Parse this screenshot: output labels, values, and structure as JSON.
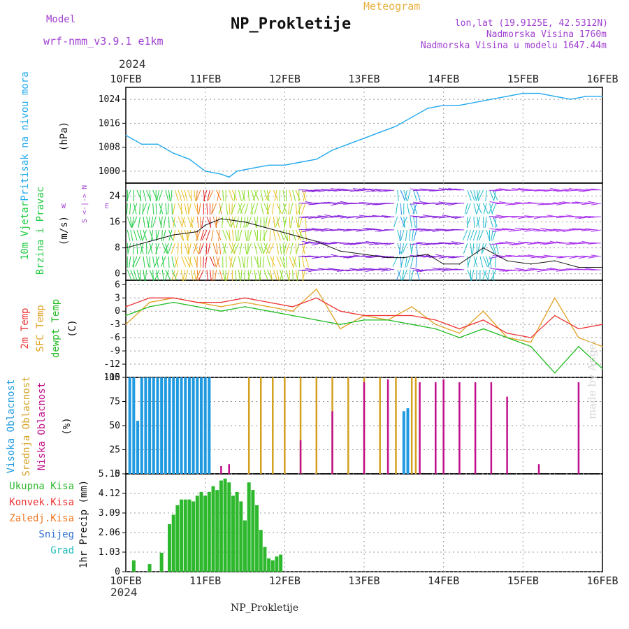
{
  "header": {
    "model_label": "Model",
    "model_name": "wrf-nmm_v3.9.1 e1km",
    "title": "NP_Prokletije",
    "meteogram": "Meteogram",
    "lonlat": "lon,lat (19.9125E, 42.5312N)",
    "elevation": "Nadmorska Visina 1760m",
    "model_elevation": "Nadmorska Visina u modelu 1647.44m",
    "watermark": "made by Angel",
    "footer": "NP_Prokletije",
    "year_top": "2024",
    "year_bottom": "2024"
  },
  "colors": {
    "pressure": "#22aaee",
    "temp2m": "#ee3333",
    "sfc_temp": "#e0a020",
    "dewpoint": "#22bb22",
    "high_cloud": "#1f9ae0",
    "mid_cloud": "#d4a020",
    "low_cloud": "#c0108a",
    "total_precip": "#2eb82e",
    "snow": "#2e6fd0",
    "frozen": "#ee7722",
    "hail": "#22bbbb"
  },
  "chart_data": [
    {
      "type": "line",
      "name": "pressure",
      "ylabel": "Pritisak na nivou mora",
      "unit": "(hPa)",
      "ylim": [
        996,
        1028
      ],
      "yticks": [
        1000,
        1008,
        1016,
        1024
      ],
      "x_days": [
        "10FEB",
        "11FEB",
        "12FEB",
        "13FEB",
        "14FEB",
        "15FEB",
        "16FEB"
      ],
      "grid": true,
      "series": [
        {
          "x": [
            0,
            0.2,
            0.4,
            0.6,
            0.8,
            1.0,
            1.2,
            1.3,
            1.4,
            1.6,
            1.8,
            2.0,
            2.2,
            2.4,
            2.6,
            2.8,
            3.0,
            3.2,
            3.4,
            3.6,
            3.8,
            4.0,
            4.2,
            4.4,
            4.6,
            4.8,
            5.0,
            5.2,
            5.4,
            5.6,
            5.8,
            6.0
          ],
          "values": [
            1012,
            1009,
            1009,
            1006,
            1004,
            1000,
            999,
            998,
            1000,
            1001,
            1002,
            1002,
            1003,
            1004,
            1007,
            1009,
            1011,
            1013,
            1015,
            1018,
            1021,
            1022,
            1022,
            1023,
            1024,
            1025,
            1026,
            1026,
            1025,
            1024,
            1025,
            1025
          ]
        }
      ]
    },
    {
      "type": "line",
      "name": "wind",
      "ylabel": "10m Vjetar Brzina i Pravac",
      "unit": "(m/s)",
      "legend_compass": "S <-|-> N",
      "legend_w": "W",
      "legend_e": "E",
      "ylim": [
        -2,
        28
      ],
      "yticks": [
        0,
        8,
        16,
        24
      ],
      "grid": true,
      "series": [
        {
          "name": "speed",
          "x": [
            0,
            0.3,
            0.6,
            0.9,
            1.0,
            1.2,
            1.5,
            1.8,
            2.1,
            2.4,
            2.7,
            3.0,
            3.3,
            3.5,
            3.8,
            4.0,
            4.2,
            4.5,
            4.8,
            5.1,
            5.4,
            5.7,
            6.0
          ],
          "values": [
            8,
            10,
            12,
            13,
            15,
            17,
            16,
            14,
            12,
            10,
            7,
            6,
            5,
            5,
            6,
            3,
            3,
            8,
            4,
            3,
            4,
            2,
            2
          ]
        }
      ]
    },
    {
      "type": "line",
      "name": "temperature",
      "ylabel": "2m Temp",
      "ylabel2": "SFC Temp",
      "ylabel3": "dewpt Temp",
      "unit": "(C)",
      "ylim": [
        -15,
        7
      ],
      "yticks": [
        6,
        3,
        0,
        -3,
        -6,
        -9,
        -12,
        -15
      ],
      "grid": true,
      "series": [
        {
          "name": "2m",
          "x": [
            0,
            0.3,
            0.6,
            0.9,
            1.2,
            1.5,
            1.8,
            2.1,
            2.4,
            2.7,
            3.0,
            3.3,
            3.6,
            3.9,
            4.2,
            4.5,
            4.8,
            5.1,
            5.4,
            5.7,
            6.0
          ],
          "values": [
            1,
            3,
            3,
            2,
            2,
            3,
            2,
            1,
            3,
            0,
            -1,
            -1,
            -1,
            -2,
            -4,
            -2,
            -5,
            -6,
            -1,
            -4,
            -3
          ]
        },
        {
          "name": "sfc",
          "x": [
            0,
            0.3,
            0.6,
            0.9,
            1.2,
            1.5,
            1.8,
            2.1,
            2.4,
            2.7,
            3.0,
            3.3,
            3.6,
            3.9,
            4.2,
            4.5,
            4.8,
            5.1,
            5.4,
            5.7,
            6.0
          ],
          "values": [
            -3,
            2,
            3,
            2,
            1,
            2,
            1,
            0,
            5,
            -4,
            -1,
            -2,
            1,
            -3,
            -5,
            0,
            -6,
            -7,
            3,
            -6,
            -8
          ]
        },
        {
          "name": "dewpt",
          "x": [
            0,
            0.3,
            0.6,
            0.9,
            1.2,
            1.5,
            1.8,
            2.1,
            2.4,
            2.7,
            3.0,
            3.3,
            3.6,
            3.9,
            4.2,
            4.5,
            4.8,
            5.1,
            5.4,
            5.7,
            6.0
          ],
          "values": [
            -1,
            1,
            2,
            1,
            0,
            1,
            0,
            -1,
            -2,
            -3,
            -2,
            -2,
            -3,
            -4,
            -6,
            -4,
            -6,
            -8,
            -14,
            -8,
            -13
          ]
        }
      ]
    },
    {
      "type": "bar",
      "name": "clouds",
      "ylabel": "Visoka Oblacnost",
      "ylabel2": "Srednja Oblacnost",
      "ylabel3": "Niska Oblacnost",
      "unit": "(%)",
      "ylim": [
        0,
        100
      ],
      "yticks": [
        0,
        25,
        50,
        75,
        100
      ],
      "series": [
        {
          "name": "high",
          "x": [
            0.05,
            0.1,
            0.15,
            0.2,
            0.25,
            0.3,
            0.35,
            0.4,
            0.45,
            0.5,
            0.55,
            0.6,
            0.65,
            0.7,
            0.75,
            0.8,
            0.85,
            0.9,
            0.95,
            1.0,
            1.05,
            3.5,
            3.55
          ],
          "values": [
            100,
            100,
            55,
            100,
            100,
            100,
            100,
            100,
            100,
            100,
            100,
            100,
            100,
            100,
            100,
            100,
            100,
            100,
            100,
            100,
            100,
            65,
            68
          ]
        },
        {
          "name": "mid",
          "x": [
            1.55,
            1.7,
            1.85,
            2.0,
            2.2,
            2.4,
            2.6,
            2.8,
            3.0,
            3.2,
            3.4,
            3.6,
            3.65
          ],
          "values": [
            100,
            100,
            100,
            100,
            100,
            100,
            100,
            100,
            100,
            100,
            100,
            100,
            100
          ]
        },
        {
          "name": "low",
          "x": [
            1.2,
            1.3,
            2.2,
            2.6,
            3.0,
            3.3,
            3.7,
            3.9,
            4.0,
            4.2,
            4.4,
            4.6,
            4.8,
            5.2,
            5.7
          ],
          "values": [
            8,
            10,
            35,
            65,
            95,
            98,
            95,
            95,
            98,
            95,
            95,
            95,
            80,
            10,
            95
          ]
        }
      ]
    },
    {
      "type": "bar",
      "name": "precipitation",
      "ylabel": "1hr Precip (mm)",
      "legend": [
        "Ukupna Kisa",
        "Konvek.Kisa",
        "Zaledj.Kisa",
        "Snijeg",
        "Grad"
      ],
      "ylim": [
        0,
        5.15
      ],
      "yticks": [
        0,
        1.03,
        2.06,
        3.09,
        4.12,
        5.15
      ],
      "series": [
        {
          "name": "Ukupna Kisa",
          "x": [
            0.1,
            0.3,
            0.45,
            0.55,
            0.6,
            0.65,
            0.7,
            0.75,
            0.8,
            0.85,
            0.9,
            0.95,
            1.0,
            1.05,
            1.1,
            1.15,
            1.2,
            1.25,
            1.3,
            1.35,
            1.4,
            1.45,
            1.5,
            1.55,
            1.6,
            1.65,
            1.7,
            1.75,
            1.8,
            1.85,
            1.9,
            1.95
          ],
          "values": [
            0.6,
            0.4,
            1.0,
            2.5,
            3.0,
            3.5,
            3.8,
            3.8,
            3.8,
            3.7,
            4.0,
            4.2,
            4.0,
            4.2,
            4.5,
            4.3,
            4.8,
            4.9,
            4.7,
            4.0,
            4.2,
            3.7,
            2.7,
            4.7,
            4.3,
            3.5,
            2.2,
            1.3,
            0.7,
            0.6,
            0.8,
            0.9
          ]
        }
      ]
    }
  ]
}
